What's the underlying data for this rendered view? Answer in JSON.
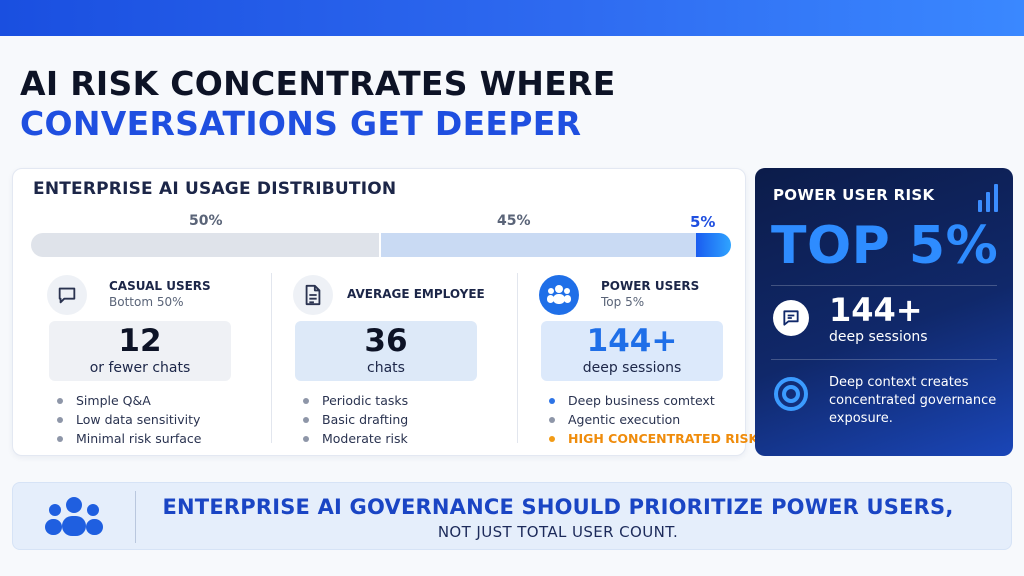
{
  "title": {
    "line1": "AI RISK CONCENTRATES WHERE",
    "line2": "CONVERSATIONS GET DEEPER"
  },
  "distribution": {
    "heading": "ENTERPRISE AI USAGE DISTRIBUTION",
    "segments": [
      {
        "percent_label": "50%",
        "share": 0.5
      },
      {
        "percent_label": "45%",
        "share": 0.45
      },
      {
        "percent_label": "5%",
        "share": 0.05
      }
    ]
  },
  "columns": [
    {
      "icon": "chat-bubble-icon",
      "name": "CASUAL USERS",
      "subtitle": "Bottom 50%",
      "number": "12",
      "unit": "or fewer chats",
      "bullets": [
        "Simple Q&A",
        "Low data sensitivity",
        "Minimal risk surface"
      ]
    },
    {
      "icon": "document-icon",
      "name": "AVERAGE EMPLOYEE",
      "subtitle": "",
      "number": "36",
      "unit": "chats",
      "bullets": [
        "Periodic tasks",
        "Basic drafting",
        "Moderate risk"
      ]
    },
    {
      "icon": "users-group-icon",
      "name": "POWER USERS",
      "subtitle": "Top 5%",
      "number": "144+",
      "unit": "deep sessions",
      "bullets": [
        "Deep business comtext",
        "Agentic execution",
        "HIGH CONCENTRATED RISK"
      ]
    }
  ],
  "power_card": {
    "title": "POWER USER RISK",
    "headline": "TOP 5%",
    "stat_value": "144+",
    "stat_label": "deep sessions",
    "note": "Deep context creates concentrated governance exposure."
  },
  "banner": {
    "line1": "ENTERPRISE AI GOVERNANCE SHOULD PRIORITIZE POWER USERS,",
    "line2": "NOT JUST TOTAL USER COUNT."
  },
  "colors": {
    "accent": "#1f4fe0",
    "risk": "#f29b16",
    "dark_card": "#10286a"
  }
}
